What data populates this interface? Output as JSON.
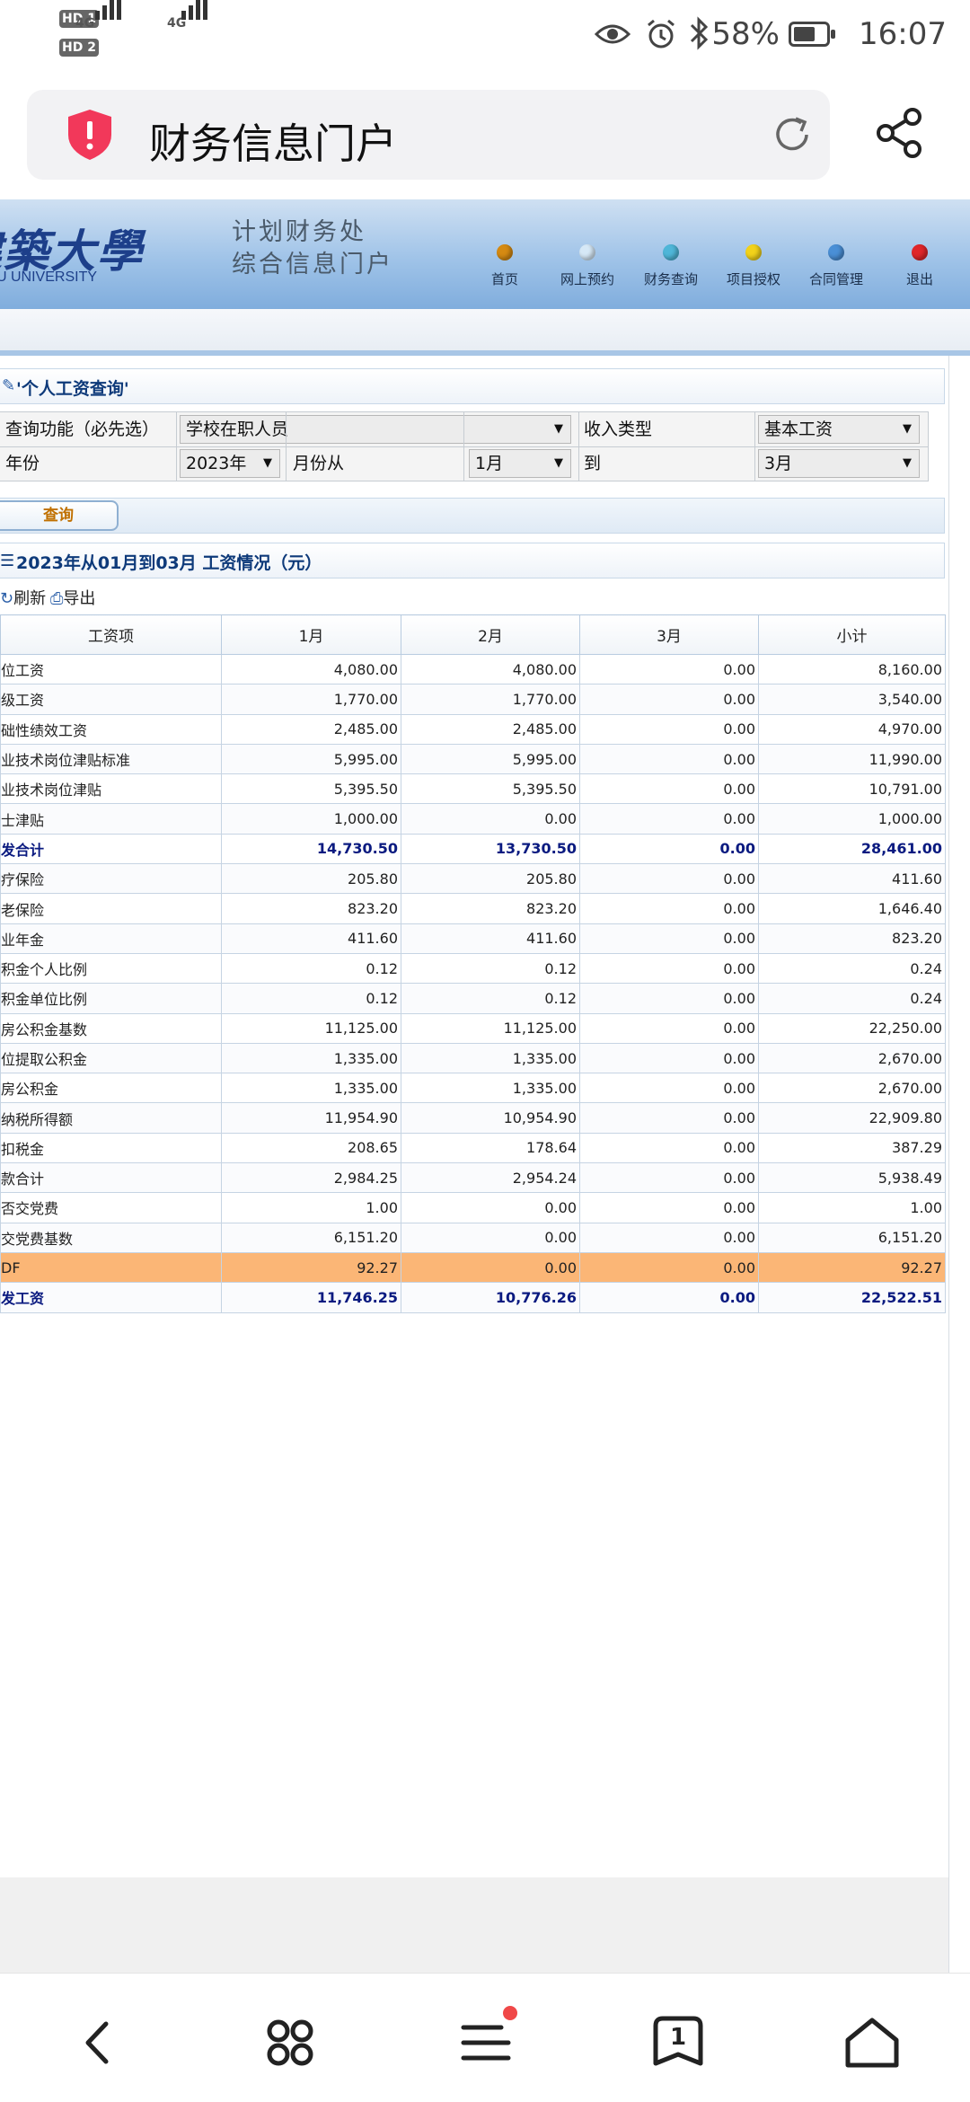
{
  "status_bar": {
    "hd1": "HD 1",
    "hd2": "HD 2",
    "net1": "4G",
    "net2": "4G",
    "battery": "58%",
    "time": "16:07"
  },
  "browser": {
    "page_title": "财务信息门户"
  },
  "banner": {
    "logo_cn": "建築大學",
    "logo_en": "JIANZHU UNIVERSITY",
    "dept_line1": "计划财务处",
    "dept_line2": "综合信息门户",
    "nav": [
      {
        "label": "首页",
        "color": "#d58a12"
      },
      {
        "label": "网上预约",
        "color": "#d6e8f6"
      },
      {
        "label": "财务查询",
        "color": "#4fb6d8"
      },
      {
        "label": "项目授权",
        "color": "#f2d21a"
      },
      {
        "label": "合同管理",
        "color": "#4a8fd6"
      },
      {
        "label": "退出",
        "color": "#e0262a"
      }
    ]
  },
  "query": {
    "panel_title": "'个人工资查询'",
    "function_label": "查询功能（必先选）",
    "function_value": "学校在职人员",
    "income_type_label": "收入类型",
    "income_type_value": "基本工资",
    "year_label": "年份",
    "year_value": "2023年",
    "month_from_label": "月份从",
    "month_from_value": "1月",
    "to_label": "到",
    "month_to_value": "3月",
    "query_button": "查询"
  },
  "results": {
    "title": "2023年从01月到03月 工资情况（元）",
    "refresh_label": "刷新",
    "export_label": "导出",
    "columns": [
      "工资项",
      "1月",
      "2月",
      "3月",
      "小计"
    ],
    "rows": [
      {
        "name": "位工资",
        "m1": "4,080.00",
        "m2": "4,080.00",
        "m3": "0.00",
        "sub": "8,160.00"
      },
      {
        "name": "级工资",
        "m1": "1,770.00",
        "m2": "1,770.00",
        "m3": "0.00",
        "sub": "3,540.00"
      },
      {
        "name": "础性绩效工资",
        "m1": "2,485.00",
        "m2": "2,485.00",
        "m3": "0.00",
        "sub": "4,970.00"
      },
      {
        "name": "业技术岗位津贴标准",
        "m1": "5,995.00",
        "m2": "5,995.00",
        "m3": "0.00",
        "sub": "11,990.00"
      },
      {
        "name": "业技术岗位津贴",
        "m1": "5,395.50",
        "m2": "5,395.50",
        "m3": "0.00",
        "sub": "10,791.00"
      },
      {
        "name": "士津贴",
        "m1": "1,000.00",
        "m2": "0.00",
        "m3": "0.00",
        "sub": "1,000.00"
      },
      {
        "name": "发合计",
        "m1": "14,730.50",
        "m2": "13,730.50",
        "m3": "0.00",
        "sub": "28,461.00",
        "style": "total"
      },
      {
        "name": "疗保险",
        "m1": "205.80",
        "m2": "205.80",
        "m3": "0.00",
        "sub": "411.60"
      },
      {
        "name": "老保险",
        "m1": "823.20",
        "m2": "823.20",
        "m3": "0.00",
        "sub": "1,646.40"
      },
      {
        "name": "业年金",
        "m1": "411.60",
        "m2": "411.60",
        "m3": "0.00",
        "sub": "823.20"
      },
      {
        "name": "积金个人比例",
        "m1": "0.12",
        "m2": "0.12",
        "m3": "0.00",
        "sub": "0.24"
      },
      {
        "name": "积金单位比例",
        "m1": "0.12",
        "m2": "0.12",
        "m3": "0.00",
        "sub": "0.24"
      },
      {
        "name": "房公积金基数",
        "m1": "11,125.00",
        "m2": "11,125.00",
        "m3": "0.00",
        "sub": "22,250.00"
      },
      {
        "name": "位提取公积金",
        "m1": "1,335.00",
        "m2": "1,335.00",
        "m3": "0.00",
        "sub": "2,670.00"
      },
      {
        "name": "房公积金",
        "m1": "1,335.00",
        "m2": "1,335.00",
        "m3": "0.00",
        "sub": "2,670.00"
      },
      {
        "name": "纳税所得额",
        "m1": "11,954.90",
        "m2": "10,954.90",
        "m3": "0.00",
        "sub": "22,909.80"
      },
      {
        "name": "扣税金",
        "m1": "208.65",
        "m2": "178.64",
        "m3": "0.00",
        "sub": "387.29"
      },
      {
        "name": "款合计",
        "m1": "2,984.25",
        "m2": "2,954.24",
        "m3": "0.00",
        "sub": "5,938.49"
      },
      {
        "name": "否交党费",
        "m1": "1.00",
        "m2": "0.00",
        "m3": "0.00",
        "sub": "1.00"
      },
      {
        "name": "交党费基数",
        "m1": "6,151.20",
        "m2": "0.00",
        "m3": "0.00",
        "sub": "6,151.20"
      },
      {
        "name": "DF",
        "m1": "92.27",
        "m2": "0.00",
        "m3": "0.00",
        "sub": "92.27",
        "style": "hl"
      },
      {
        "name": "发工资",
        "m1": "11,746.25",
        "m2": "10,776.26",
        "m3": "0.00",
        "sub": "22,522.51",
        "style": "total"
      }
    ]
  },
  "bottom_nav": {
    "tab_count": "1"
  }
}
